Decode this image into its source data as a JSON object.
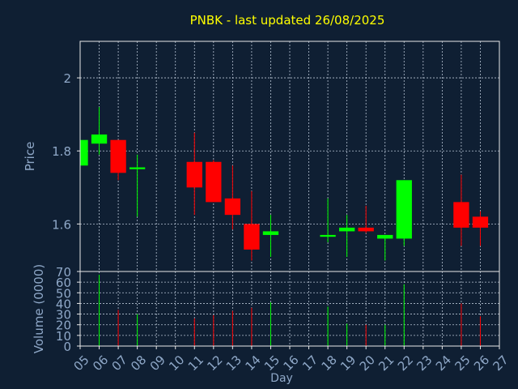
{
  "colors": {
    "background": "#0f1f33",
    "up": "#00ff00",
    "down": "#ff0000",
    "title": "#ffff00",
    "axis_text": "#8fa8c8",
    "frame": "#e8e8e8",
    "grid": "#b8c4d4"
  },
  "chart_data": [
    {
      "type": "candlestick",
      "title": "PNBK - last updated 26/08/2025",
      "ylabel": "Price",
      "ylim": [
        1.47,
        2.1
      ],
      "y_ticks": [
        "2",
        "1.8",
        "1.6"
      ],
      "x": [
        "05",
        "06",
        "07",
        "08",
        "09",
        "10",
        "11",
        "12",
        "13",
        "14",
        "15",
        "16",
        "17",
        "18",
        "19",
        "20",
        "21",
        "22",
        "23",
        "24",
        "25",
        "26",
        "27"
      ],
      "candles": [
        {
          "day": "05",
          "open": 1.76,
          "high": 1.83,
          "low": 1.76,
          "close": 1.83
        },
        {
          "day": "06",
          "open": 1.82,
          "high": 1.92,
          "low": 1.79,
          "close": 1.845
        },
        {
          "day": "07",
          "open": 1.83,
          "high": 1.83,
          "low": 1.72,
          "close": 1.74
        },
        {
          "day": "08",
          "open": 1.75,
          "high": 1.79,
          "low": 1.62,
          "close": 1.755
        },
        {
          "day": "11",
          "open": 1.77,
          "high": 1.85,
          "low": 1.625,
          "close": 1.7
        },
        {
          "day": "12",
          "open": 1.77,
          "high": 1.775,
          "low": 1.66,
          "close": 1.66
        },
        {
          "day": "13",
          "open": 1.67,
          "high": 1.76,
          "low": 1.585,
          "close": 1.625
        },
        {
          "day": "14",
          "open": 1.6,
          "high": 1.69,
          "low": 1.5,
          "close": 1.53
        },
        {
          "day": "15",
          "open": 1.57,
          "high": 1.625,
          "low": 1.51,
          "close": 1.58
        },
        {
          "day": "18",
          "open": 1.565,
          "high": 1.67,
          "low": 1.55,
          "close": 1.57
        },
        {
          "day": "19",
          "open": 1.58,
          "high": 1.625,
          "low": 1.51,
          "close": 1.59
        },
        {
          "day": "20",
          "open": 1.59,
          "high": 1.65,
          "low": 1.575,
          "close": 1.58
        },
        {
          "day": "21",
          "open": 1.56,
          "high": 1.57,
          "low": 1.5,
          "close": 1.57
        },
        {
          "day": "22",
          "open": 1.56,
          "high": 1.72,
          "low": 1.54,
          "close": 1.72
        },
        {
          "day": "25",
          "open": 1.66,
          "high": 1.735,
          "low": 1.54,
          "close": 1.59
        },
        {
          "day": "26",
          "open": 1.62,
          "high": 1.635,
          "low": 1.54,
          "close": 1.59
        }
      ]
    },
    {
      "type": "bar",
      "ylabel": "Volume (0000)",
      "xlabel": "Day",
      "ylim": [
        0,
        70
      ],
      "y_ticks": [
        "0",
        "10",
        "20",
        "30",
        "40",
        "50",
        "60",
        "70"
      ],
      "volumes": [
        {
          "day": "06",
          "value": 67,
          "dir": "up"
        },
        {
          "day": "07",
          "value": 34,
          "dir": "down"
        },
        {
          "day": "08",
          "value": 30,
          "dir": "up"
        },
        {
          "day": "11",
          "value": 26,
          "dir": "down"
        },
        {
          "day": "12",
          "value": 29,
          "dir": "down"
        },
        {
          "day": "13",
          "value": 33,
          "dir": "down"
        },
        {
          "day": "14",
          "value": 36,
          "dir": "down"
        },
        {
          "day": "15",
          "value": 41,
          "dir": "up"
        },
        {
          "day": "18",
          "value": 37,
          "dir": "up"
        },
        {
          "day": "19",
          "value": 21,
          "dir": "up"
        },
        {
          "day": "20",
          "value": 20,
          "dir": "down"
        },
        {
          "day": "21",
          "value": 20,
          "dir": "up"
        },
        {
          "day": "22",
          "value": 58,
          "dir": "up"
        },
        {
          "day": "25",
          "value": 40,
          "dir": "down"
        },
        {
          "day": "26",
          "value": 28,
          "dir": "down"
        }
      ]
    }
  ]
}
